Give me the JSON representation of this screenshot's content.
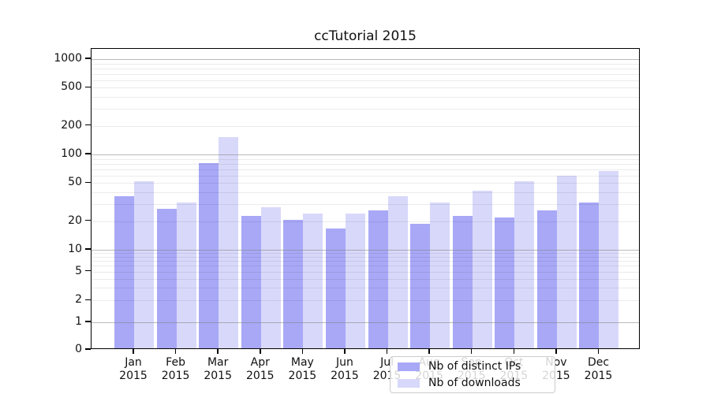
{
  "chart_data": {
    "type": "bar",
    "title": "ccTutorial 2015",
    "categories": [
      "Jan",
      "Feb",
      "Mar",
      "Apr",
      "May",
      "Jun",
      "Jul",
      "Aug",
      "Sep",
      "Oct",
      "Nov",
      "Dec"
    ],
    "category_year": "2015",
    "series": [
      {
        "name": "Nb of distinct IPs",
        "color": "#a8a8f7",
        "values": [
          35,
          26,
          78,
          22,
          20,
          16,
          25,
          18,
          22,
          21,
          25,
          30
        ]
      },
      {
        "name": "Nb of downloads",
        "color": "#d8d8fa",
        "values": [
          50,
          30,
          145,
          27,
          23,
          23,
          35,
          30,
          40,
          50,
          58,
          65
        ]
      }
    ],
    "yscale": "symlog",
    "yticks": [
      0,
      1,
      2,
      5,
      10,
      20,
      50,
      100,
      200,
      500,
      1000
    ],
    "ylim": [
      0,
      1300
    ],
    "xlabel": "",
    "ylabel": "",
    "grid": true,
    "legend_position": "lower center"
  }
}
